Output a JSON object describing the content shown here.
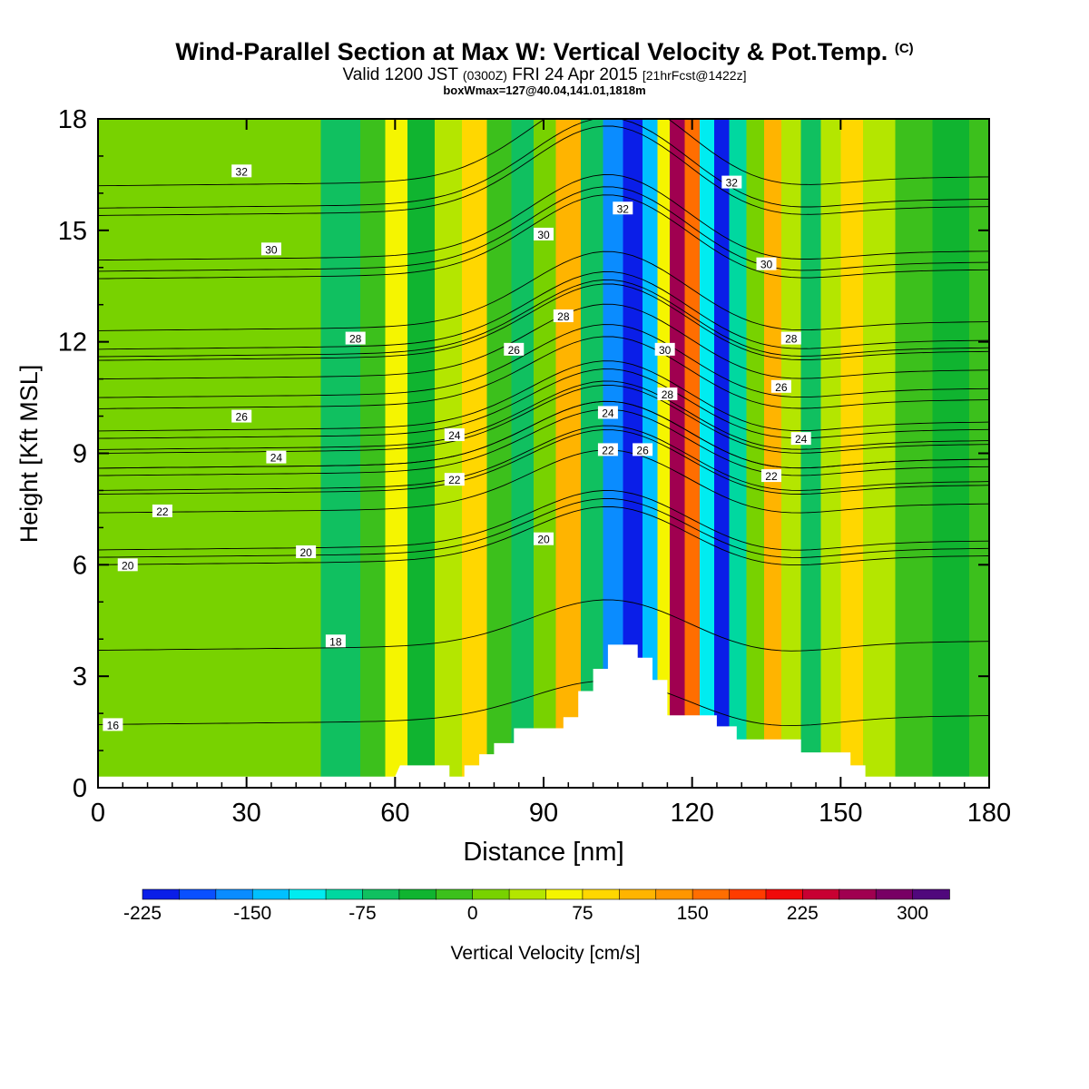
{
  "header": {
    "title_main": "Wind-Parallel Section at Max W: Vertical Velocity & Pot.Temp.",
    "title_copyright": "(C)",
    "valid_prefix": "Valid 1200 JST",
    "valid_utc": "(0300Z)",
    "valid_date": "FRI 24 Apr 2015",
    "valid_fcst": "[21hrFcst@1422z]",
    "box_info": "boxWmax=127@40.04,141.01,1818m"
  },
  "chart_data": {
    "type": "heatmap",
    "xlabel": "Distance [nm]",
    "ylabel": "Height [Kft MSL]",
    "xlim": [
      0,
      180
    ],
    "ylim": [
      0,
      18
    ],
    "x_ticks": [
      0,
      30,
      60,
      90,
      120,
      150,
      180
    ],
    "y_ticks": [
      0,
      3,
      6,
      9,
      12,
      15,
      18
    ],
    "colorbar": {
      "label": "Vertical Velocity [cm/s]",
      "levels": [
        -225,
        -200,
        -175,
        -150,
        -125,
        -100,
        -75,
        -50,
        -25,
        0,
        25,
        50,
        75,
        100,
        125,
        150,
        175,
        200,
        225,
        250,
        275,
        300,
        325,
        350
      ],
      "tick_labels": [
        "-225",
        "-150",
        "-75",
        "0",
        "75",
        "150",
        "225",
        "300"
      ],
      "tick_values": [
        -225,
        -150,
        -75,
        0,
        75,
        150,
        225,
        300
      ],
      "colors": [
        "#0a1ee8",
        "#0a50ff",
        "#0a8cff",
        "#00c0ff",
        "#00ecf0",
        "#00d8a0",
        "#10c060",
        "#10b430",
        "#3cc01c",
        "#78d200",
        "#b4e600",
        "#f5f500",
        "#ffd700",
        "#ffb400",
        "#ff9600",
        "#ff6e00",
        "#ff3c00",
        "#f00a0a",
        "#c80032",
        "#a00050",
        "#780064",
        "#50087c"
      ]
    },
    "velocity_columns": [
      {
        "x": 0,
        "w": 0
      },
      {
        "x": 40,
        "w": 5
      },
      {
        "x": 50,
        "w": -60
      },
      {
        "x": 56,
        "w": -20
      },
      {
        "x": 60,
        "w": 50
      },
      {
        "x": 65,
        "w": -40
      },
      {
        "x": 71,
        "w": 40
      },
      {
        "x": 76,
        "w": 90
      },
      {
        "x": 81,
        "w": -10
      },
      {
        "x": 86,
        "w": -75
      },
      {
        "x": 90,
        "w": 15
      },
      {
        "x": 95,
        "w": 120
      },
      {
        "x": 100,
        "w": -60
      },
      {
        "x": 104,
        "w": -175
      },
      {
        "x": 108,
        "w": -215
      },
      {
        "x": 112,
        "w": -140
      },
      {
        "x": 114,
        "w": 50
      },
      {
        "x": 117,
        "w": 260
      },
      {
        "x": 120,
        "w": 150
      },
      {
        "x": 123,
        "w": -110
      },
      {
        "x": 126,
        "w": -225
      },
      {
        "x": 129,
        "w": -90
      },
      {
        "x": 133,
        "w": 20
      },
      {
        "x": 136,
        "w": 110
      },
      {
        "x": 140,
        "w": 40
      },
      {
        "x": 144,
        "w": -70
      },
      {
        "x": 148,
        "w": 40
      },
      {
        "x": 152,
        "w": 90
      },
      {
        "x": 157,
        "w": 25
      },
      {
        "x": 165,
        "w": -25
      },
      {
        "x": 172,
        "w": -40
      },
      {
        "x": 180,
        "w": -15
      }
    ],
    "terrain": [
      [
        0,
        0.3
      ],
      [
        60,
        0.3
      ],
      [
        61,
        0.6
      ],
      [
        71,
        0.6
      ],
      [
        71,
        0.3
      ],
      [
        74,
        0.3
      ],
      [
        74,
        0.6
      ],
      [
        77,
        0.6
      ],
      [
        77,
        0.9
      ],
      [
        80,
        0.9
      ],
      [
        80,
        1.2
      ],
      [
        84,
        1.2
      ],
      [
        84,
        1.6
      ],
      [
        94,
        1.6
      ],
      [
        94,
        1.9
      ],
      [
        97,
        1.9
      ],
      [
        97,
        2.6
      ],
      [
        100,
        2.6
      ],
      [
        100,
        3.2
      ],
      [
        103,
        3.2
      ],
      [
        103,
        3.85
      ],
      [
        109,
        3.85
      ],
      [
        109,
        3.5
      ],
      [
        112,
        3.5
      ],
      [
        112,
        2.9
      ],
      [
        115,
        2.9
      ],
      [
        115,
        1.95
      ],
      [
        125,
        1.95
      ],
      [
        125,
        1.65
      ],
      [
        129,
        1.65
      ],
      [
        129,
        1.3
      ],
      [
        142,
        1.3
      ],
      [
        142,
        0.95
      ],
      [
        152,
        0.95
      ],
      [
        152,
        0.6
      ],
      [
        155,
        0.6
      ],
      [
        155,
        0.3
      ],
      [
        180,
        0.3
      ]
    ],
    "theta_contours": [
      {
        "label": "16",
        "y0": 1.7,
        "label_at": [
          3,
          1.7
        ]
      },
      {
        "label": "18",
        "y0": 3.7,
        "label_at": [
          48,
          3.95
        ]
      },
      {
        "label": "20",
        "y0": 6.0,
        "label_at": [
          6,
          6.0
        ]
      },
      {
        "label": "20",
        "y0": 6.2,
        "label_at": [
          42,
          6.35
        ]
      },
      {
        "label": "22",
        "y0": 7.4,
        "label_at": [
          13,
          7.45
        ]
      },
      {
        "label": "24",
        "y0": 8.6,
        "label_at": [
          36,
          8.9
        ]
      },
      {
        "label": "26",
        "y0": 9.6,
        "label_at": [
          29,
          10.0
        ]
      },
      {
        "label": "28",
        "y0": 11.5,
        "label_at": [
          52,
          12.1
        ]
      },
      {
        "label": "30",
        "y0": 13.9,
        "label_at": [
          35,
          14.5
        ]
      },
      {
        "label": "32",
        "y0": 16.2,
        "label_at": [
          29,
          16.6
        ]
      },
      {
        "label": "22",
        "y0": 7.9,
        "label_at": [
          72,
          8.3
        ]
      },
      {
        "label": "24",
        "y0": 9.0,
        "label_at": [
          72,
          9.5
        ]
      },
      {
        "label": "26",
        "y0": 11.0,
        "label_at": [
          84,
          11.8
        ]
      },
      {
        "label": "28",
        "y0": 12.3,
        "label_at": [
          94,
          12.7
        ]
      },
      {
        "label": "30",
        "y0": 14.2,
        "label_at": [
          90,
          14.9
        ]
      },
      {
        "label": "20",
        "y0": 6.4,
        "label_at": [
          90,
          6.7
        ]
      },
      {
        "label": "22",
        "y0": 8.4,
        "label_at": [
          103,
          9.1
        ]
      },
      {
        "label": "24",
        "y0": 9.4,
        "label_at": [
          103,
          10.1
        ]
      },
      {
        "label": "32",
        "y0": 15.4,
        "label_at": [
          106,
          15.6
        ]
      },
      {
        "label": "26",
        "y0": 8.6,
        "label_at": [
          110,
          9.1
        ]
      },
      {
        "label": "28",
        "y0": 10.2,
        "label_at": [
          115,
          10.6
        ]
      },
      {
        "label": "30",
        "y0": 11.6,
        "label_at": [
          114.5,
          11.8
        ]
      },
      {
        "label": "32",
        "y0": 15.6,
        "label_at": [
          128,
          16.3
        ]
      },
      {
        "label": "30",
        "y0": 13.7,
        "label_at": [
          135,
          14.1
        ]
      },
      {
        "label": "28",
        "y0": 11.8,
        "label_at": [
          140,
          12.1
        ]
      },
      {
        "label": "26",
        "y0": 10.5,
        "label_at": [
          138,
          10.8
        ]
      },
      {
        "label": "24",
        "y0": 9.1,
        "label_at": [
          142,
          9.4
        ]
      },
      {
        "label": "22",
        "y0": 8.0,
        "label_at": [
          136,
          8.4
        ]
      }
    ]
  }
}
